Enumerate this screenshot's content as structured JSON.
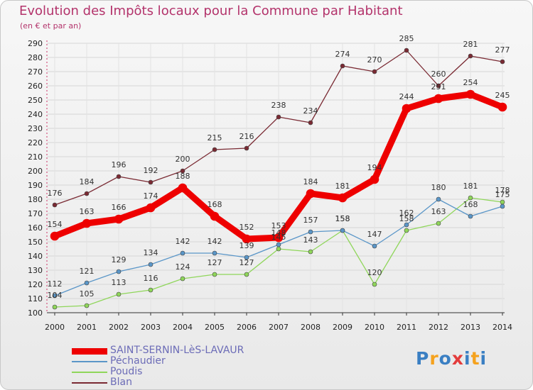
{
  "header": {
    "title": "Evolution des Impôts locaux pour la Commune par Habitant",
    "subtitle": "(en € et par an)"
  },
  "logo": {
    "text": "Proxiti",
    "colors": [
      "#3a7fc3",
      "#f5a21e",
      "#3a7fc3",
      "#e33c3c",
      "#3a7fc3",
      "#f5a21e",
      "#3a7fc3"
    ]
  },
  "chart_data": {
    "type": "line",
    "title": "Evolution des Impôts locaux pour la Commune par Habitant",
    "subtitle": "(en € et par an)",
    "x": [
      "2000",
      "2001",
      "2002",
      "2003",
      "2004",
      "2005",
      "2006",
      "2007",
      "2008",
      "2009",
      "2010",
      "2011",
      "2012",
      "2013",
      "2014"
    ],
    "ylim": [
      100,
      290
    ],
    "yticks": [
      100,
      110,
      120,
      130,
      140,
      150,
      160,
      170,
      180,
      190,
      200,
      210,
      220,
      230,
      240,
      250,
      260,
      270,
      280,
      290
    ],
    "grid": true,
    "legend_position": "bottom-left",
    "series": [
      {
        "name": "SAINT-SERNIN-LèS-LAVAUR",
        "color": "#ee0000",
        "values": [
          154,
          163,
          166,
          174,
          188,
          168,
          152,
          153,
          184,
          181,
          194,
          244,
          251,
          254,
          245
        ],
        "labels": [
          "154",
          "163",
          "166",
          "174",
          "188",
          "168",
          "152",
          "153",
          "184",
          "181",
          "194",
          "244",
          "251",
          "254",
          "245"
        ]
      },
      {
        "name": "Péchaudier",
        "color": "#5a96c8",
        "values": [
          112,
          121,
          129,
          134,
          142,
          142,
          139,
          148,
          157,
          158,
          147,
          162,
          180,
          168,
          175
        ],
        "labels": [
          "112",
          "121",
          "129",
          "134",
          "142",
          "142",
          "139",
          "148",
          "157",
          "158",
          "147",
          "162",
          "180",
          "168",
          "175"
        ]
      },
      {
        "name": "Poudis",
        "color": "#8fd65a",
        "values": [
          104,
          105,
          113,
          116,
          124,
          127,
          127,
          145,
          143,
          158,
          120,
          158,
          163,
          181,
          178
        ],
        "labels": [
          "104",
          "105",
          "113",
          "116",
          "124",
          "127",
          "127",
          "145",
          "143",
          "158",
          "120",
          "158",
          "163",
          "181",
          "178"
        ]
      },
      {
        "name": "Blan",
        "color": "#7a2a33",
        "values": [
          176,
          184,
          196,
          192,
          200,
          215,
          216,
          238,
          234,
          274,
          270,
          285,
          260,
          281,
          277
        ],
        "labels": [
          "176",
          "184",
          "196",
          "192",
          "200",
          "215",
          "216",
          "238",
          "234",
          "274",
          "270",
          "285",
          "260",
          "281",
          "277"
        ]
      }
    ]
  }
}
